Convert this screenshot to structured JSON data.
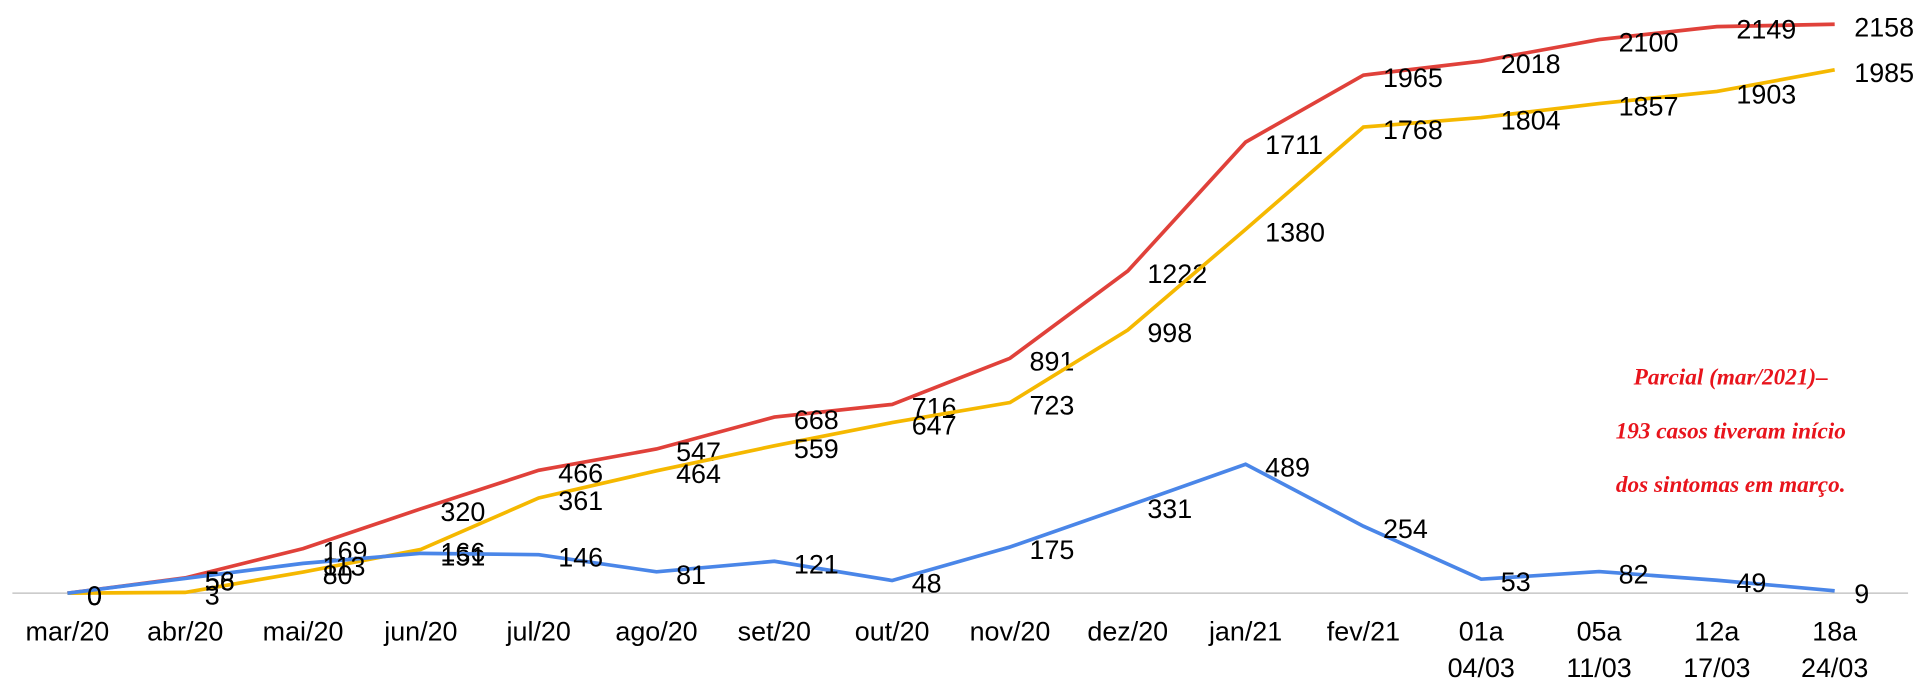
{
  "chart_data": {
    "type": "line",
    "categories": [
      "mar/20",
      "abr/20",
      "mai/20",
      "jun/20",
      "jul/20",
      "ago/20",
      "set/20",
      "out/20",
      "nov/20",
      "dez/20",
      "jan/21",
      "fev/21",
      "01a 04/03",
      "05a 11/03",
      "12a 17/03",
      "18a 24/03"
    ],
    "series": [
      {
        "color": "#e0413a",
        "values": [
          0,
          58,
          169,
          320,
          466,
          547,
          668,
          716,
          891,
          1222,
          1711,
          1965,
          2018,
          2100,
          2149,
          2158
        ]
      },
      {
        "color": "#f5b800",
        "values": [
          0,
          3,
          80,
          166,
          361,
          464,
          559,
          647,
          723,
          998,
          1380,
          1768,
          1804,
          1857,
          1903,
          1985
        ]
      },
      {
        "color": "#4a86e8",
        "values": [
          0,
          56,
          113,
          151,
          146,
          81,
          121,
          48,
          175,
          331,
          489,
          254,
          53,
          82,
          49,
          9
        ]
      }
    ],
    "ylim": [
      0,
      2250
    ],
    "annotation": [
      "Parcial (mar/2021)–",
      "193 casos tiveram início",
      "dos sintomas em março."
    ]
  }
}
